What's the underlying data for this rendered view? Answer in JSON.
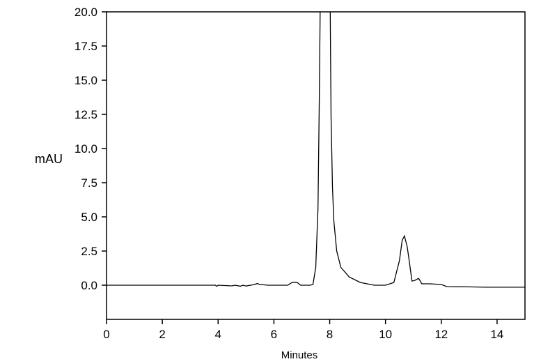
{
  "chart_data": {
    "type": "line",
    "title": "",
    "xlabel": "Minutes",
    "ylabel": "mAU",
    "xlim": [
      0,
      15
    ],
    "ylim": [
      -2.5,
      20
    ],
    "xticks": [
      0,
      2,
      4,
      6,
      8,
      10,
      12,
      14
    ],
    "xtick_labels": [
      "0",
      "2",
      "4",
      "6",
      "8",
      "10",
      "12",
      "14"
    ],
    "yticks": [
      0,
      2.5,
      5,
      7.5,
      10,
      12.5,
      15,
      17.5,
      20
    ],
    "ytick_labels": [
      "0.0",
      "2.5",
      "5.0",
      "7.5",
      "10.0",
      "12.5",
      "15.0",
      "17.5",
      "20.0"
    ],
    "grid": false,
    "line_color": "#000000",
    "series": [
      {
        "x": [
          0,
          3.0,
          3.9,
          3.95,
          4.0,
          4.5,
          4.6,
          4.8,
          4.9,
          5.0,
          5.3,
          5.4,
          5.5,
          5.8,
          6.5,
          6.65,
          6.75,
          6.85,
          6.95,
          7.3,
          7.4,
          7.5,
          7.58,
          7.63,
          7.66,
          7.8,
          8.02,
          8.05,
          8.1,
          8.15,
          8.25,
          8.4,
          8.7,
          9.1,
          9.6,
          10.0,
          10.3,
          10.5,
          10.6,
          10.68,
          10.78,
          10.85,
          10.95,
          11.05,
          11.19,
          11.3,
          11.6,
          12.0,
          12.2,
          13.0,
          13.6,
          14.0,
          15.0
        ],
        "y": [
          0,
          0,
          0,
          -0.08,
          0,
          -0.05,
          0,
          -0.07,
          0,
          -0.06,
          0.05,
          0.12,
          0.05,
          0,
          0,
          0.2,
          0.22,
          0.18,
          0,
          0,
          0.05,
          1.3,
          5.6,
          14,
          20.5,
          30,
          20,
          12.3,
          7.2,
          4.7,
          2.5,
          1.3,
          0.6,
          0.2,
          0,
          0,
          0.2,
          1.8,
          3.3,
          3.6,
          2.8,
          1.8,
          0.3,
          0.35,
          0.5,
          0.1,
          0.1,
          0.05,
          -0.1,
          -0.12,
          -0.15,
          -0.15,
          -0.15
        ]
      }
    ]
  }
}
